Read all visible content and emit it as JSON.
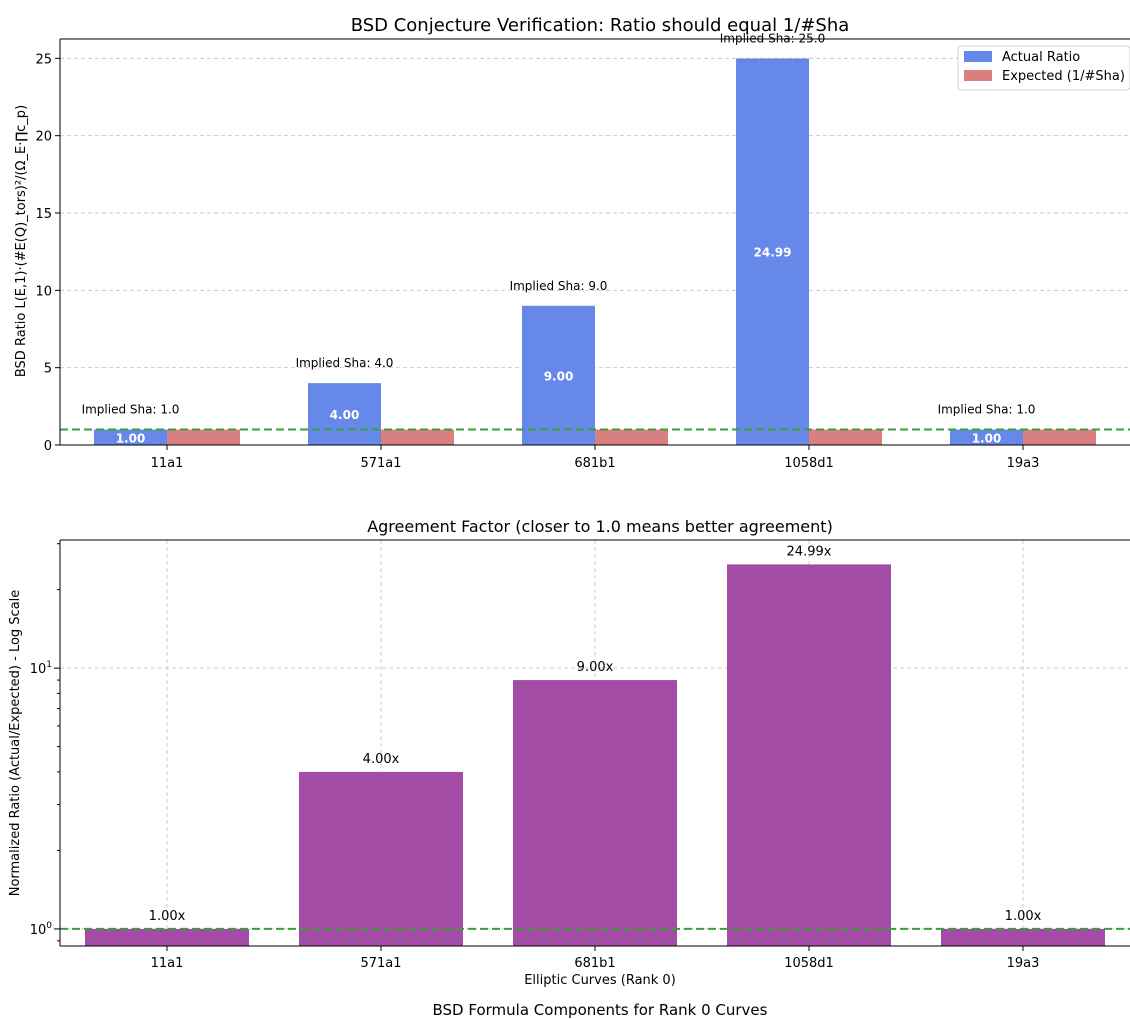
{
  "figure": {
    "suptitle": "BSD Formula Components for Rank 0 Curves"
  },
  "chart_data": [
    {
      "type": "bar",
      "title": "BSD Conjecture Verification: Ratio should equal 1/#Sha",
      "xlabel": "",
      "ylabel": "BSD Ratio L(E,1)·(#E(Q)_tors)²/(Ω_E·∏c_p)",
      "categories": [
        "11a1",
        "571a1",
        "681b1",
        "1058d1",
        "19a3"
      ],
      "ylim": [
        0,
        26.25
      ],
      "yticks": [
        0,
        5,
        10,
        15,
        20,
        25
      ],
      "grid": "y",
      "legend_position": "top-right",
      "series": [
        {
          "name": "Actual Ratio",
          "values": [
            1.0,
            4.0,
            9.0,
            24.99,
            1.0
          ],
          "color": "#6688e8"
        },
        {
          "name": "Expected (1/#Sha)",
          "values": [
            1.0,
            1.0,
            1.0,
            1.0,
            1.0
          ],
          "color": "#d97f7f"
        }
      ],
      "value_labels": [
        "1.00",
        "4.00",
        "9.00",
        "24.99",
        "1.00"
      ],
      "annotations": [
        "Implied Sha: 1.0",
        "Implied Sha: 4.0",
        "Implied Sha: 9.0",
        "Implied Sha: 25.0",
        "Implied Sha: 1.0"
      ],
      "reference_line": {
        "y": 1.0,
        "color": "#3a9e3a",
        "style": "dashed"
      }
    },
    {
      "type": "bar",
      "title": "Agreement Factor (closer to 1.0 means better agreement)",
      "xlabel": "Elliptic Curves (Rank 0)",
      "ylabel": "Normalized Ratio (Actual/Expected) - Log Scale",
      "yscale": "log",
      "categories": [
        "11a1",
        "571a1",
        "681b1",
        "1058d1",
        "19a3"
      ],
      "ylim": [
        0.86,
        31
      ],
      "ytick_base": "10",
      "grid": "both",
      "series": [
        {
          "values": [
            1.0,
            4.0,
            9.0,
            24.99,
            1.0
          ],
          "color": "#a34ca5"
        }
      ],
      "value_labels": [
        "1.00x",
        "4.00x",
        "9.00x",
        "24.99x",
        "1.00x"
      ],
      "reference_line": {
        "y": 1.0,
        "color": "#3a9e3a",
        "style": "dashed"
      }
    }
  ]
}
